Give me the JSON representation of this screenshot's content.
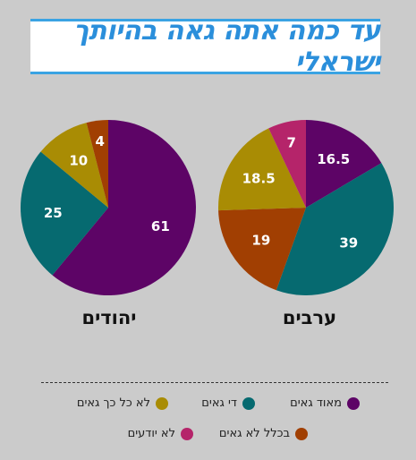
{
  "title": "עד כמה אתה גאה בהיותך ישראלי",
  "chart_data": [
    {
      "type": "pie",
      "group": "ערבים",
      "slices": [
        {
          "category": "מאוד גאים",
          "value": 16.5,
          "color": "#5d0466"
        },
        {
          "category": "די גאים",
          "value": 39,
          "color": "#066a70"
        },
        {
          "category": "בכלל לא גאים",
          "value": 19,
          "color": "#a13f02"
        },
        {
          "category": "לא כל כך גאים",
          "value": 18.5,
          "color": "#a98c04"
        },
        {
          "category": "לא יודעים",
          "value": 7,
          "color": "#b5246a"
        }
      ]
    },
    {
      "type": "pie",
      "group": "יהודים",
      "slices": [
        {
          "category": "מאוד גאים",
          "value": 61,
          "color": "#5d0466"
        },
        {
          "category": "די גאים",
          "value": 25,
          "color": "#066a70"
        },
        {
          "category": "לא כל כך גאים",
          "value": 10,
          "color": "#a98c04"
        },
        {
          "category": "בכלל לא גאים",
          "value": 4,
          "color": "#a13f02"
        }
      ]
    }
  ],
  "legend": [
    {
      "label": "מאוד גאים",
      "color": "#5d0466"
    },
    {
      "label": "די גאים",
      "color": "#066a70"
    },
    {
      "label": "לא כל כך גאים",
      "color": "#a98c04"
    },
    {
      "label": "בכלל לא גאים",
      "color": "#a13f02"
    },
    {
      "label": "לא יודעים",
      "color": "#b5246a"
    }
  ]
}
